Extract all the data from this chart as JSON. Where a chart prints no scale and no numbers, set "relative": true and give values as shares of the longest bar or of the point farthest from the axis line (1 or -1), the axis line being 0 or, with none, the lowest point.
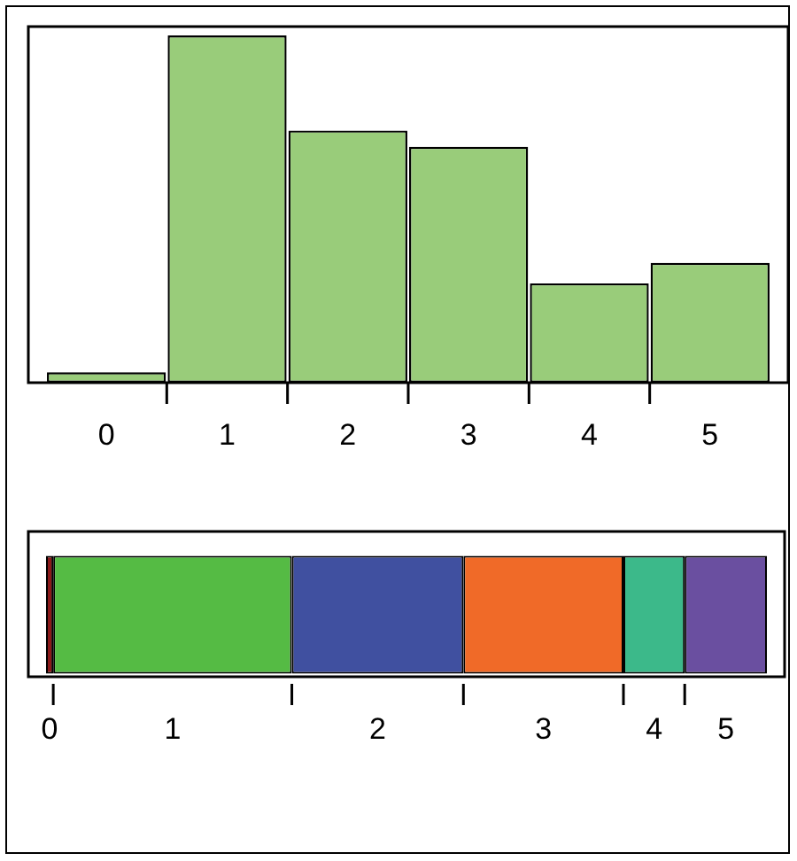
{
  "chart_data": [
    {
      "type": "bar",
      "relative": true,
      "categories": [
        "0",
        "1",
        "2",
        "3",
        "4",
        "5"
      ],
      "values": [
        0.03,
        1,
        0.726,
        0.679,
        0.286,
        0.345
      ],
      "color": "#99cc7a"
    },
    {
      "type": "bar",
      "relative": true,
      "orientation": "horizontal",
      "stacked": true,
      "categories": [
        null
      ],
      "legend": "bottom",
      "series": [
        {
          "name": "0",
          "color": "#8b1a1a",
          "values": [
            0.01
          ]
        },
        {
          "name": "1",
          "color": "#55bb44",
          "values": [
            0.331
          ]
        },
        {
          "name": "2",
          "color": "#4050a0",
          "values": [
            0.238
          ]
        },
        {
          "name": "3",
          "color": "#f06a28",
          "values": [
            0.222
          ]
        },
        {
          "name": "4",
          "color": "#3cb98a",
          "values": [
            0.085
          ]
        },
        {
          "name": "5",
          "color": "#6a4fa0",
          "values": [
            0.114
          ]
        }
      ]
    }
  ]
}
